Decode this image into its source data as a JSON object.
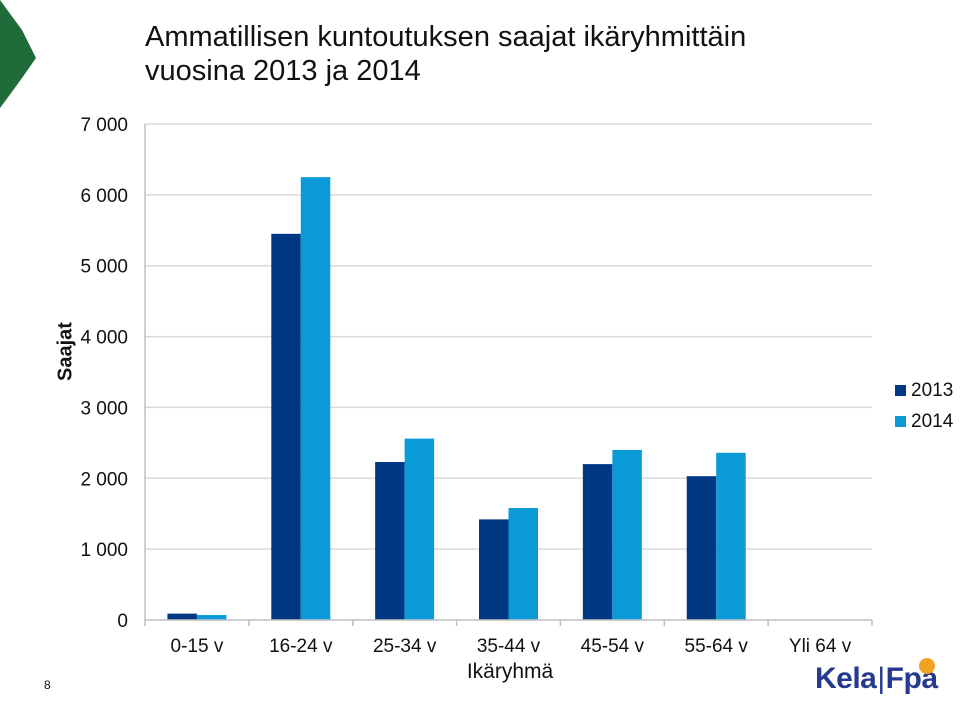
{
  "page_number": "8",
  "logo": {
    "left": "Kela",
    "separator": "|",
    "right": "Fpa"
  },
  "colors": {
    "series_2013": "#003883",
    "series_2014": "#0b9ad8",
    "grid": "#d9d9d9",
    "deco": "#1f6b3a",
    "logo_mark": "#f2a324"
  },
  "chart_data": {
    "type": "bar",
    "title_lines": [
      "Ammatillisen kuntoutuksen saajat ikäryhmittäin",
      "vuosina 2013 ja 2014"
    ],
    "xlabel": "Ikäryhmä",
    "ylabel": "Saajat",
    "categories": [
      "0-15 v",
      "16-24 v",
      "25-34 v",
      "35-44 v",
      "45-54 v",
      "55-64 v",
      "Yli 64 v"
    ],
    "series": [
      {
        "name": "2013",
        "values": [
          90,
          5450,
          2230,
          1420,
          2200,
          2030,
          0
        ]
      },
      {
        "name": "2014",
        "values": [
          70,
          6250,
          2560,
          1580,
          2400,
          2360,
          0
        ]
      }
    ],
    "ylim": [
      0,
      7000
    ],
    "yticks": [
      0,
      1000,
      2000,
      3000,
      4000,
      5000,
      6000,
      7000
    ],
    "ytick_labels": [
      "0",
      "1 000",
      "2 000",
      "3 000",
      "4 000",
      "5 000",
      "6 000",
      "7 000"
    ],
    "grid": true,
    "legend_position": "right"
  }
}
